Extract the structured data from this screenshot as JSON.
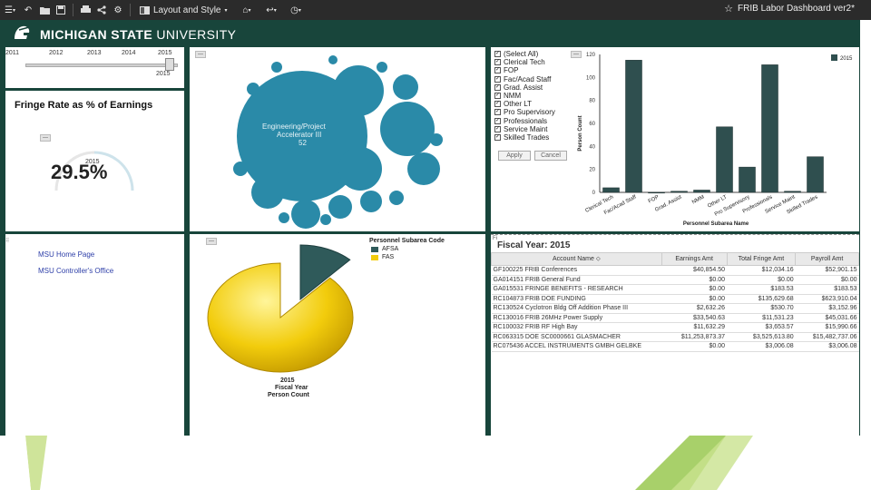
{
  "toolbar": {
    "layout_label": "Layout and Style",
    "dashboard_title": "FRIB Labor Dashboard ver2*",
    "star": "☆"
  },
  "header": {
    "university_bold": "MICHIGAN STATE",
    "university_rest": "UNIVERSITY",
    "brand_color": "#18453b"
  },
  "year_slider": {
    "years": [
      "2011",
      "2012",
      "2013",
      "2014",
      "2015"
    ],
    "selected": "2015"
  },
  "fringe": {
    "title": "Fringe Rate as % of Earnings",
    "year": "2015",
    "value": "29.5%",
    "collapse_btn": "—"
  },
  "links": [
    "MSU Home Page",
    "MSU Controller's Office"
  ],
  "bubbles": {
    "main_label_1": "Engineering/Project",
    "main_label_2": "Accelerator III",
    "main_value": "52",
    "color": "#2a8aa8"
  },
  "filter": {
    "options": [
      {
        "label": "(Select All)",
        "checked": true
      },
      {
        "label": "Clerical Tech",
        "checked": true
      },
      {
        "label": "FOP",
        "checked": true
      },
      {
        "label": "Fac/Acad Staff",
        "checked": true
      },
      {
        "label": "Grad. Assist",
        "checked": true
      },
      {
        "label": "NMM",
        "checked": true
      },
      {
        "label": "Other LT",
        "checked": true
      },
      {
        "label": "Pro Supervisory",
        "checked": true
      },
      {
        "label": "Professionals",
        "checked": true
      },
      {
        "label": "Service Maint",
        "checked": true
      },
      {
        "label": "Skilled Trades",
        "checked": true
      }
    ],
    "apply": "Apply",
    "cancel": "Cancel"
  },
  "bar_chart": {
    "legend": "2015",
    "ylabel": "Person Count",
    "xlabel": "Personnel Subarea Name",
    "yticks": [
      "0",
      "20",
      "40",
      "60",
      "80",
      "100",
      "120"
    ],
    "color": "#2f4f4f"
  },
  "pie_chart": {
    "legend_title": "Personnel Subarea Code",
    "legend": [
      {
        "label": "AFSA",
        "color": "#2f5a5a"
      },
      {
        "label": "FAS",
        "color": "#f2cc0c"
      }
    ],
    "caption_year": "2015",
    "caption_1": "Fiscal Year",
    "caption_2": "Person Count"
  },
  "table": {
    "title_prefix": "Fi",
    "title": "Fiscal Year: 2015",
    "columns": [
      "Account Name ⬦",
      "Earnings Amt",
      "Total Fringe Amt",
      "Payroll Amt"
    ],
    "rows": [
      [
        "GF100225  FRIB Conferences",
        "$40,854.50",
        "$12,034.16",
        "$52,901.15"
      ],
      [
        "GA014151  FRIB General Fund",
        "$0.00",
        "$0.00",
        "$0.00"
      ],
      [
        "GA015531  FRINGE BENEFITS - RESEARCH",
        "$0.00",
        "$183.53",
        "$183.53"
      ],
      [
        "RC104873  FRIB DOE FUNDING",
        "$0.00",
        "$135,629.68",
        "$623,910.04"
      ],
      [
        "RC130524  Cyclotron Bldg Off Addition Phase III",
        "$2,632.26",
        "$530.70",
        "$3,152.96"
      ],
      [
        "RC130016  FRIB 26MHz Power Supply",
        "$33,540.63",
        "$11,531.23",
        "$45,031.66"
      ],
      [
        "RC100032  FRIB RF High Bay",
        "$11,632.29",
        "$3,653.57",
        "$15,990.66"
      ],
      [
        "RC063315  DOE SC0000661 GLASMACHER",
        "$11,253,873.37",
        "$3,525,613.80",
        "$15,482,737.06"
      ],
      [
        "RC075436  ACCEL INSTRUMENTS GMBH GELBKE",
        "$0.00",
        "$3,006.08",
        "$3,006.08"
      ]
    ]
  },
  "chart_data": [
    {
      "type": "bar",
      "categories": [
        "Clerical Tech",
        "Fac/Acad Staff",
        "FOP",
        "Grad. Assist",
        "NMM",
        "Other LT",
        "Pro Supervisory",
        "Professionals",
        "Service Maint",
        "Skilled Trades"
      ],
      "series": [
        {
          "name": "2015",
          "values": [
            4,
            115,
            0,
            1,
            2,
            57,
            22,
            111,
            1,
            31
          ]
        }
      ],
      "title": "",
      "xlabel": "Personnel Subarea Name",
      "ylabel": "Person Count",
      "ylim": [
        0,
        120
      ]
    },
    {
      "type": "pie",
      "categories": [
        "AFSA",
        "FAS"
      ],
      "values": [
        12,
        88
      ],
      "title": "2015 Fiscal Year Person Count"
    }
  ]
}
